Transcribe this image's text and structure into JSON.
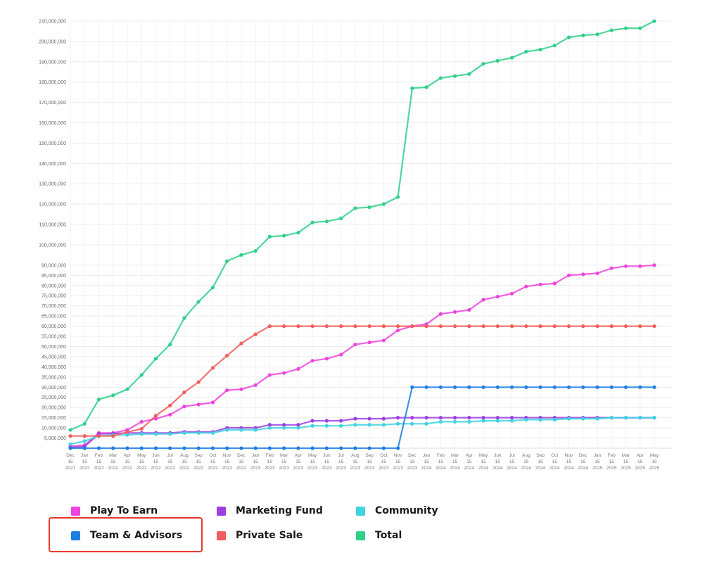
{
  "chart_data": {
    "type": "line",
    "title": "",
    "xlabel": "",
    "ylabel": "",
    "ylim": [
      0,
      210000000
    ],
    "yticks": [
      {
        "value": 5000000,
        "label": "5,000,000"
      },
      {
        "value": 10000000,
        "label": "10,000,000"
      },
      {
        "value": 15000000,
        "label": "15,000,000"
      },
      {
        "value": 20000000,
        "label": "20,000,000"
      },
      {
        "value": 25000000,
        "label": "25,000,000"
      },
      {
        "value": 30000000,
        "label": "30,000,000"
      },
      {
        "value": 35000000,
        "label": "35,000,000"
      },
      {
        "value": 40000000,
        "label": "40,000,000"
      },
      {
        "value": 45000000,
        "label": "45,000,000"
      },
      {
        "value": 50000000,
        "label": "50,000,000"
      },
      {
        "value": 55000000,
        "label": "55,000,000"
      },
      {
        "value": 60000000,
        "label": "60,000,000"
      },
      {
        "value": 65000000,
        "label": "65,000,000"
      },
      {
        "value": 70000000,
        "label": "70,000,000"
      },
      {
        "value": 75000000,
        "label": "75,000,000"
      },
      {
        "value": 80000000,
        "label": "80,000,000"
      },
      {
        "value": 85000000,
        "label": "85,000,000"
      },
      {
        "value": 90000000,
        "label": "90,000,000"
      },
      {
        "value": 100000000,
        "label": "100,000,000"
      },
      {
        "value": 110000000,
        "label": "110,000,000"
      },
      {
        "value": 120000000,
        "label": "120,000,000"
      },
      {
        "value": 130000000,
        "label": "130,000,000"
      },
      {
        "value": 140000000,
        "label": "140,000,000"
      },
      {
        "value": 150000000,
        "label": "150,000,000"
      },
      {
        "value": 160000000,
        "label": "160,000,000"
      },
      {
        "value": 170000000,
        "label": "170,000,000"
      },
      {
        "value": 180000000,
        "label": "180,000,000"
      },
      {
        "value": 190000000,
        "label": "190,000,000"
      },
      {
        "value": 200000000,
        "label": "200,000,000"
      },
      {
        "value": 210000000,
        "label": "210,000,000"
      }
    ],
    "categories": [
      [
        "Dec",
        "15",
        "2021"
      ],
      [
        "Jan",
        "15",
        "2022"
      ],
      [
        "Feb",
        "15",
        "2022"
      ],
      [
        "Mar",
        "15",
        "2022"
      ],
      [
        "Apr",
        "15",
        "2022"
      ],
      [
        "May",
        "15",
        "2022"
      ],
      [
        "Jun",
        "15",
        "2022"
      ],
      [
        "Jul",
        "15",
        "2022"
      ],
      [
        "Aug",
        "15",
        "2022"
      ],
      [
        "Sep",
        "15",
        "2022"
      ],
      [
        "Oct",
        "15",
        "2022"
      ],
      [
        "Nov",
        "15",
        "2022"
      ],
      [
        "Dec",
        "15",
        "2022"
      ],
      [
        "Jan",
        "15",
        "2023"
      ],
      [
        "Feb",
        "15",
        "2023"
      ],
      [
        "Mar",
        "15",
        "2023"
      ],
      [
        "Apr",
        "15",
        "2023"
      ],
      [
        "May",
        "15",
        "2023"
      ],
      [
        "Jun",
        "15",
        "2023"
      ],
      [
        "Jul",
        "15",
        "2023"
      ],
      [
        "Aug",
        "15",
        "2023"
      ],
      [
        "Sep",
        "15",
        "2023"
      ],
      [
        "Oct",
        "15",
        "2023"
      ],
      [
        "Nov",
        "15",
        "2023"
      ],
      [
        "Dec",
        "15",
        "2023"
      ],
      [
        "Jan",
        "15",
        "2024"
      ],
      [
        "Feb",
        "15",
        "2024"
      ],
      [
        "Mar",
        "15",
        "2024"
      ],
      [
        "Apr",
        "15",
        "2024"
      ],
      [
        "May",
        "15",
        "2024"
      ],
      [
        "Jun",
        "15",
        "2024"
      ],
      [
        "Jul",
        "15",
        "2024"
      ],
      [
        "Aug",
        "15",
        "2024"
      ],
      [
        "Sep",
        "15",
        "2024"
      ],
      [
        "Oct",
        "15",
        "2024"
      ],
      [
        "Nov",
        "15",
        "2024"
      ],
      [
        "Dec",
        "15",
        "2024"
      ],
      [
        "Jan",
        "15",
        "2025"
      ],
      [
        "Feb",
        "15",
        "2025"
      ],
      [
        "Mar",
        "15",
        "2025"
      ],
      [
        "Apr",
        "15",
        "2025"
      ],
      [
        "May",
        "15",
        "2025"
      ]
    ],
    "grid": true,
    "legend_position": "bottom",
    "series": [
      {
        "name": "Play To Earn",
        "color": "#ee44dd",
        "values": [
          1000000,
          1500000,
          7500000,
          7500000,
          9000000,
          13000000,
          14500000,
          16500000,
          20500000,
          21500000,
          22500000,
          28500000,
          29000000,
          31000000,
          36000000,
          37000000,
          39000000,
          43000000,
          44000000,
          46000000,
          51000000,
          52000000,
          53000000,
          58000000,
          60000000,
          61000000,
          66000000,
          67000000,
          68000000,
          73000000,
          74500000,
          76000000,
          79500000,
          80500000,
          81000000,
          85000000,
          85500000,
          86000000,
          88500000,
          89500000,
          89500000,
          90000000
        ]
      },
      {
        "name": "Marketing Fund",
        "color": "#9b3fe0",
        "values": [
          300000,
          800000,
          7000000,
          7200000,
          7500000,
          7500000,
          7500000,
          7500000,
          8000000,
          8000000,
          8000000,
          10000000,
          10000000,
          10000000,
          11500000,
          11500000,
          11500000,
          13500000,
          13500000,
          13500000,
          14500000,
          14500000,
          14500000,
          15000000,
          15000000,
          15000000,
          15000000,
          15000000,
          15000000,
          15000000,
          15000000,
          15000000,
          15000000,
          15000000,
          15000000,
          15000000,
          15000000,
          15000000,
          15000000,
          15000000,
          15000000,
          15000000
        ]
      },
      {
        "name": "Community",
        "color": "#3fd4e0",
        "values": [
          2000000,
          3500000,
          6000000,
          6500000,
          6500000,
          7000000,
          7000000,
          7000000,
          7500000,
          7500000,
          7500000,
          9000000,
          9000000,
          9000000,
          10000000,
          10000000,
          10000000,
          11000000,
          11000000,
          11000000,
          11500000,
          11500000,
          11500000,
          12000000,
          12000000,
          12000000,
          13000000,
          13000000,
          13000000,
          13500000,
          13500000,
          13500000,
          14000000,
          14000000,
          14000000,
          14500000,
          14500000,
          14500000,
          15000000,
          15000000,
          15000000,
          15000000
        ]
      },
      {
        "name": "Team & Advisors",
        "color": "#1e7fe0",
        "values": [
          0,
          0,
          0,
          0,
          0,
          0,
          0,
          0,
          0,
          0,
          0,
          0,
          0,
          0,
          0,
          0,
          0,
          0,
          0,
          0,
          0,
          0,
          0,
          0,
          30000000,
          30000000,
          30000000,
          30000000,
          30000000,
          30000000,
          30000000,
          30000000,
          30000000,
          30000000,
          30000000,
          30000000,
          30000000,
          30000000,
          30000000,
          30000000,
          30000000,
          30000000
        ]
      },
      {
        "name": "Private Sale",
        "color": "#f25c5c",
        "values": [
          6000000,
          6000000,
          6000000,
          6000000,
          8000000,
          9500000,
          16000000,
          21000000,
          27500000,
          32500000,
          39500000,
          45500000,
          51500000,
          56000000,
          60000000,
          60000000,
          60000000,
          60000000,
          60000000,
          60000000,
          60000000,
          60000000,
          60000000,
          60000000,
          60000000,
          60000000,
          60000000,
          60000000,
          60000000,
          60000000,
          60000000,
          60000000,
          60000000,
          60000000,
          60000000,
          60000000,
          60000000,
          60000000,
          60000000,
          60000000,
          60000000,
          60000000
        ]
      },
      {
        "name": "Total",
        "color": "#2ed08a",
        "values": [
          9000000,
          12000000,
          24000000,
          26000000,
          29000000,
          36000000,
          44000000,
          51000000,
          64000000,
          72000000,
          79000000,
          92000000,
          95000000,
          97000000,
          104000000,
          104500000,
          106000000,
          111000000,
          111500000,
          113000000,
          118000000,
          118500000,
          120000000,
          123500000,
          177000000,
          177500000,
          182000000,
          183000000,
          184000000,
          189000000,
          190500000,
          192000000,
          195000000,
          196000000,
          198000000,
          202000000,
          203000000,
          203500000,
          205500000,
          206500000,
          206500000,
          210000000
        ]
      }
    ]
  },
  "legend": {
    "items": [
      {
        "label": "Play To Earn",
        "color": "#ee44dd"
      },
      {
        "label": "Marketing Fund",
        "color": "#9b3fe0"
      },
      {
        "label": "Community",
        "color": "#3fd4e0"
      },
      {
        "label": "Team & Advisors",
        "color": "#1e7fe0"
      },
      {
        "label": "Private Sale",
        "color": "#f25c5c"
      },
      {
        "label": "Total",
        "color": "#2ed08a"
      }
    ],
    "highlighted": "Team & Advisors",
    "highlight_color": "#e63b2e"
  }
}
